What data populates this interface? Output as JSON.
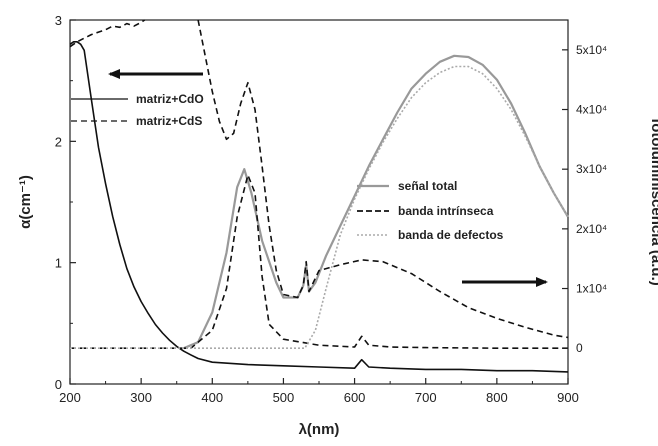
{
  "chart_data": {
    "type": "line",
    "xlabel": "λ(nm)",
    "ylabel_left": "α(cm⁻¹)",
    "ylabel_right": "fotoluminiscencia (a.u.)",
    "xlim": [
      200,
      900
    ],
    "ylim_left": [
      0,
      3
    ],
    "ylim_right": [
      -0.6,
      5.5
    ],
    "x_ticks": [
      200,
      300,
      400,
      500,
      600,
      700,
      800,
      900
    ],
    "y_ticks_left": [
      0,
      1,
      2,
      3
    ],
    "y_ticks_right": [
      {
        "value": 0,
        "label": "0"
      },
      {
        "value": 1,
        "label": "1x10⁴"
      },
      {
        "value": 2,
        "label": "2x10⁴"
      },
      {
        "value": 3,
        "label": "3x10⁴"
      },
      {
        "value": 4,
        "label": "4x10⁴"
      },
      {
        "value": 5,
        "label": "5x10⁴"
      }
    ],
    "grid": false,
    "absorption_legend": [
      {
        "label": "matriz+CdO",
        "style": "solid"
      },
      {
        "label": "matriz+CdS",
        "style": "dashed"
      }
    ],
    "pl_legend": [
      {
        "label": "señal total",
        "style": "solid-gray"
      },
      {
        "label": "banda intrínseca",
        "style": "dashed"
      },
      {
        "label": "banda de defectos",
        "style": "dotted-gray"
      }
    ],
    "series": [
      {
        "name": "matriz+CdO",
        "axis": "left",
        "style": "solid",
        "color": "#111111",
        "x": [
          200,
          205,
          210,
          215,
          220,
          230,
          240,
          250,
          260,
          270,
          280,
          290,
          300,
          310,
          320,
          330,
          340,
          350,
          360,
          370,
          380,
          400,
          450,
          500,
          550,
          600,
          610,
          620,
          650,
          700,
          750,
          800,
          850,
          900
        ],
        "y": [
          2.8,
          2.82,
          2.82,
          2.8,
          2.75,
          2.35,
          1.95,
          1.65,
          1.38,
          1.15,
          0.95,
          0.8,
          0.68,
          0.58,
          0.49,
          0.42,
          0.36,
          0.31,
          0.27,
          0.24,
          0.21,
          0.18,
          0.16,
          0.15,
          0.14,
          0.13,
          0.2,
          0.14,
          0.13,
          0.12,
          0.12,
          0.11,
          0.11,
          0.1
        ]
      },
      {
        "name": "matriz+CdS",
        "axis": "left",
        "style": "dashed",
        "color": "#111111",
        "x": [
          200,
          210,
          220,
          230,
          240,
          250,
          260,
          270,
          280,
          290,
          300,
          305
        ],
        "y": [
          2.78,
          2.82,
          2.85,
          2.88,
          2.9,
          2.92,
          2.95,
          2.94,
          2.97,
          2.95,
          2.98,
          3.0
        ]
      },
      {
        "name": "señal total",
        "axis": "right",
        "style": "solid",
        "color": "#999999",
        "x": [
          360,
          380,
          400,
          420,
          435,
          445,
          455,
          470,
          490,
          500,
          520,
          528,
          532,
          536,
          545,
          560,
          580,
          600,
          620,
          640,
          660,
          680,
          700,
          720,
          740,
          760,
          780,
          800,
          820,
          840,
          860,
          880,
          900
        ],
        "y": [
          0.0,
          0.1,
          0.6,
          1.6,
          2.7,
          3.0,
          2.6,
          1.8,
          1.1,
          0.85,
          0.85,
          1.05,
          1.4,
          0.95,
          1.1,
          1.55,
          2.05,
          2.55,
          3.05,
          3.5,
          3.95,
          4.35,
          4.6,
          4.8,
          4.9,
          4.88,
          4.75,
          4.5,
          4.1,
          3.6,
          3.05,
          2.6,
          2.2
        ]
      },
      {
        "name": "banda intrínseca",
        "axis": "right",
        "style": "dashed",
        "color": "#111111",
        "x": [
          380,
          390,
          400,
          410,
          420,
          430,
          440,
          450,
          460,
          470,
          480,
          490,
          500,
          520,
          528,
          532,
          536,
          550,
          580,
          610,
          640,
          680,
          720,
          760,
          800,
          840,
          880,
          900
        ],
        "y": [
          5.5,
          4.9,
          4.3,
          3.8,
          3.5,
          3.6,
          4.1,
          4.45,
          4.0,
          3.05,
          2.05,
          1.3,
          0.9,
          0.85,
          1.05,
          1.45,
          0.95,
          1.3,
          1.4,
          1.48,
          1.45,
          1.25,
          0.95,
          0.68,
          0.5,
          0.35,
          0.22,
          0.18
        ]
      },
      {
        "name": "banda intrínseca (bajo)",
        "axis": "right",
        "style": "dashed",
        "color": "#111111",
        "x": [
          200,
          300,
          370,
          400,
          420,
          435,
          450,
          460,
          470,
          480,
          500,
          550,
          600,
          610,
          620,
          650,
          700,
          800,
          900
        ],
        "y": [
          0.0,
          0.0,
          0.0,
          0.3,
          1.0,
          2.2,
          2.9,
          2.6,
          1.2,
          0.4,
          0.15,
          0.05,
          0.02,
          0.2,
          0.05,
          0.02,
          0.01,
          0.0,
          0.0
        ]
      },
      {
        "name": "banda de defectos",
        "axis": "right",
        "style": "dotted",
        "color": "#aaaaaa",
        "x": [
          200,
          300,
          400,
          500,
          530,
          545,
          560,
          580,
          600,
          620,
          640,
          660,
          680,
          700,
          720,
          740,
          760,
          780,
          800,
          820,
          840,
          860,
          880,
          900
        ],
        "y": [
          0.0,
          0.0,
          0.0,
          0.0,
          0.0,
          0.3,
          1.0,
          1.9,
          2.5,
          3.0,
          3.45,
          3.85,
          4.2,
          4.45,
          4.62,
          4.72,
          4.72,
          4.6,
          4.35,
          4.0,
          3.55,
          3.05,
          2.6,
          2.2
        ]
      }
    ]
  }
}
